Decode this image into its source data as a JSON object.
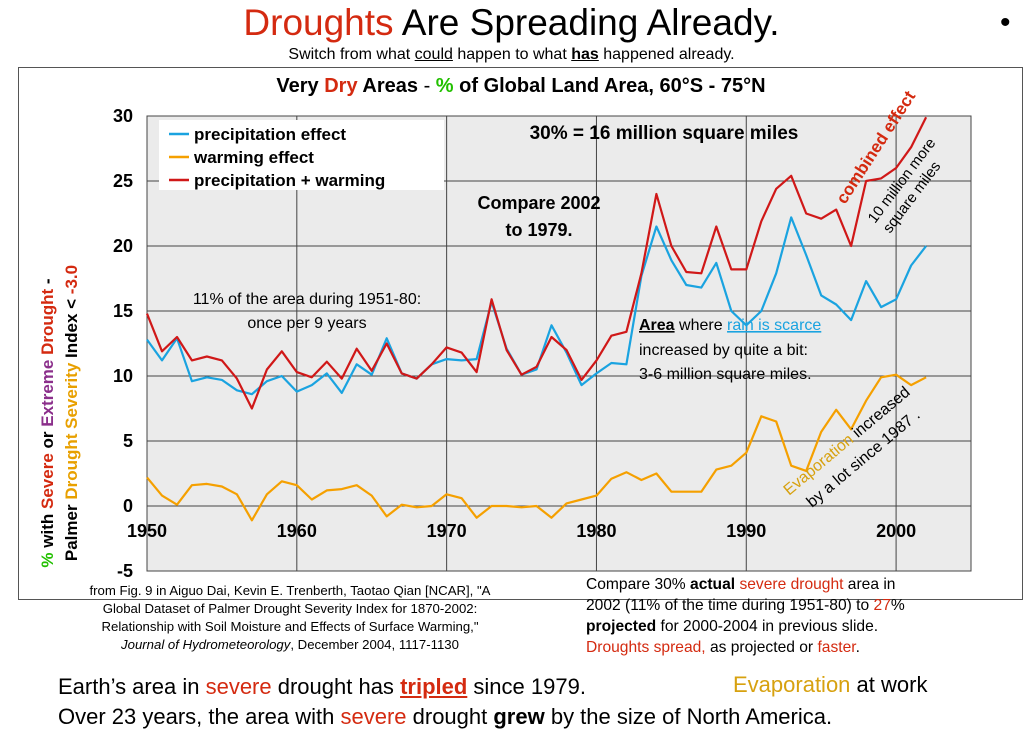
{
  "header": {
    "title_red": "Droughts",
    "title_rest": "Are Spreading Already.",
    "subtitle_a": "Switch from what ",
    "subtitle_could": "could",
    "subtitle_b": " happen to what ",
    "subtitle_has": "has",
    "subtitle_c": " happened already.",
    "bullet": "•"
  },
  "chart_data": {
    "type": "line",
    "title_parts": [
      "Very ",
      "Dry",
      " Areas ",
      "- ",
      "%",
      " of Global Land Area",
      ", 60°S - 75°N"
    ],
    "ylabel_line1_parts": [
      "%",
      " with ",
      "Severe",
      " or ",
      "Extreme",
      " Drought",
      " -"
    ],
    "ylabel_line2_parts": [
      "Palmer ",
      "Drought Severity",
      " Index < ",
      "-3.0"
    ],
    "xlim": [
      1950,
      2005
    ],
    "ylim": [
      -5,
      30
    ],
    "x_ticks": [
      1950,
      1960,
      1970,
      1980,
      1990,
      2000
    ],
    "y_ticks": [
      -5,
      0,
      5,
      10,
      15,
      20,
      25,
      30
    ],
    "grid": true,
    "legend_position": "top-left",
    "x": [
      1950,
      1951,
      1952,
      1953,
      1954,
      1955,
      1956,
      1957,
      1958,
      1959,
      1960,
      1961,
      1962,
      1963,
      1964,
      1965,
      1966,
      1967,
      1968,
      1969,
      1970,
      1971,
      1972,
      1973,
      1974,
      1975,
      1976,
      1977,
      1978,
      1979,
      1980,
      1981,
      1982,
      1983,
      1984,
      1985,
      1986,
      1987,
      1988,
      1989,
      1990,
      1991,
      1992,
      1993,
      1994,
      1995,
      1996,
      1997,
      1998,
      1999,
      2000,
      2001,
      2002
    ],
    "series": [
      {
        "name": "precipitation effect",
        "color": "#1aa3e0",
        "values": [
          12.8,
          11.2,
          12.9,
          9.6,
          9.9,
          9.7,
          8.9,
          8.6,
          9.6,
          10.0,
          8.8,
          9.3,
          10.2,
          8.7,
          10.9,
          10.1,
          12.9,
          10.2,
          9.8,
          10.9,
          11.3,
          11.2,
          11.3,
          15.7,
          12.1,
          10.1,
          10.5,
          13.9,
          11.8,
          9.3,
          10.2,
          11.0,
          10.9,
          17.7,
          21.5,
          18.9,
          17.0,
          16.8,
          18.7,
          15.0,
          13.9,
          15.0,
          17.9,
          22.2,
          19.3,
          16.2,
          15.5,
          14.3,
          17.3,
          15.3,
          15.9,
          18.5,
          20.0
        ]
      },
      {
        "name": "warming effect",
        "color": "#f5a000",
        "values": [
          2.2,
          0.8,
          0.1,
          1.6,
          1.7,
          1.5,
          0.9,
          -1.1,
          0.9,
          1.9,
          1.6,
          0.5,
          1.2,
          1.3,
          1.6,
          0.8,
          -0.8,
          0.1,
          -0.1,
          0.0,
          0.9,
          0.6,
          -0.9,
          0.0,
          0.0,
          -0.1,
          0.0,
          -0.9,
          0.2,
          0.5,
          0.8,
          2.1,
          2.6,
          2.0,
          2.5,
          1.1,
          1.1,
          1.1,
          2.8,
          3.1,
          4.1,
          6.9,
          6.5,
          3.1,
          2.7,
          5.7,
          7.4,
          5.9,
          8.1,
          9.9,
          10.1,
          9.3,
          9.9
        ]
      },
      {
        "name": "precipitation + warming",
        "color": "#d01818",
        "values": [
          14.8,
          11.9,
          13.0,
          11.2,
          11.5,
          11.2,
          9.8,
          7.5,
          10.5,
          11.9,
          10.3,
          9.9,
          11.1,
          9.8,
          12.1,
          10.4,
          12.5,
          10.2,
          9.8,
          10.9,
          12.2,
          11.8,
          10.3,
          15.9,
          12.0,
          10.1,
          10.7,
          13.0,
          12.0,
          9.7,
          11.2,
          13.1,
          13.4,
          17.9,
          24.0,
          20.0,
          18.0,
          17.9,
          21.5,
          18.2,
          18.2,
          21.9,
          24.4,
          25.4,
          22.5,
          22.1,
          22.8,
          20.0,
          25.0,
          25.2,
          26.0,
          27.6,
          29.9
        ]
      }
    ],
    "annotations": {
      "area_30": "30% = 16 million square miles",
      "compare_l1": "Compare 2002",
      "compare_l2": "to 1979.",
      "eleven_l1": "11% of the area during 1951-80:",
      "eleven_l2": "once per 9 years",
      "area_word": "Area",
      "area_where": " where ",
      "area_rain": "rain is scarce",
      "area_l2": "increased by quite a bit:",
      "area_l3": "3-6 million square miles.",
      "combined": "combined effect",
      "ten_l1": "10 million more",
      "ten_l2": "square miles",
      "evap_word": "Evaporation",
      "evap_rest": " increased",
      "evap_l2": "by a lot since 1987 ."
    }
  },
  "footer_left": {
    "l1": "from Fig. 9 in Aiguo Dai, Kevin E. Trenberth, Taotao Qian [NCAR], \"A",
    "l2": "Global Dataset of Palmer Drought Severity Index for 1870-2002:",
    "l3": "Relationship with Soil Moisture and Effects of Surface Warming,\"",
    "l4_italic": "Journal of Hydrometeorology",
    "l4_rest": ", December 2004, 1117-1130"
  },
  "footer_right": {
    "p1": "Compare 30% ",
    "p2": "actual",
    "p3": " ",
    "p4": "severe drought",
    "p5": " area in",
    "p6": "2002 (11% of the time during 1951-80) to ",
    "p7": "27",
    "p8": "%",
    "p9": "projected",
    "p10": " for 2000-2004 in previous slide.",
    "p11": "Droughts spread,",
    "p12": " as projected or ",
    "p13": "faster",
    "p14": "."
  },
  "bottom": {
    "l1_a": "Earth’s area in ",
    "l1_severe": "severe",
    "l1_b": " drought has ",
    "l1_tripled": "tripled",
    "l1_c": " since 1979.",
    "l2_a": "Over 23 years, the area with ",
    "l2_severe": "severe",
    "l2_b": " drought ",
    "l2_grew": "grew",
    "l2_c": " by the size of North America.",
    "evap_a": "Evaporation",
    "evap_b": " at work"
  },
  "colors": {
    "red": "#d42a10",
    "green": "#22c000",
    "purple": "#8b2f8b",
    "orange": "#e8a000",
    "blue_link": "#1aa3e0"
  }
}
